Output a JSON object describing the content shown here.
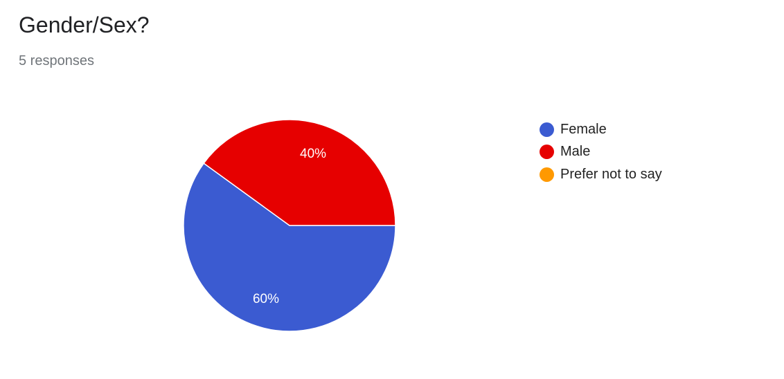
{
  "title": "Gender/Sex?",
  "responses": "5 responses",
  "chart_data": {
    "type": "pie",
    "categories": [
      "Female",
      "Male",
      "Prefer not to say"
    ],
    "values": [
      60,
      40,
      0
    ],
    "data_labels": [
      "60%",
      "40%",
      ""
    ],
    "colors": [
      "#3b5bd1",
      "#e60000",
      "#ff9900"
    ],
    "legend": "right"
  }
}
